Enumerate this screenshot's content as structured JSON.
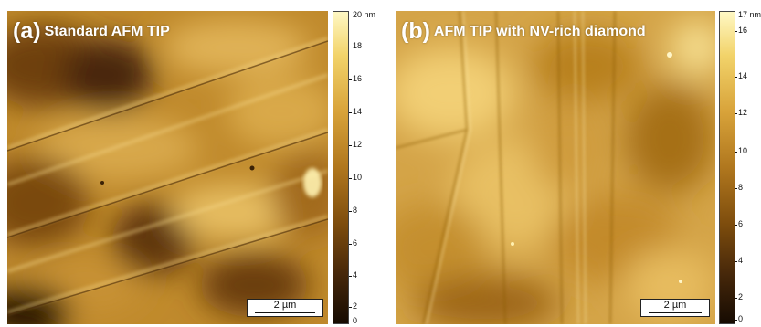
{
  "panels": [
    {
      "letter": "(a)",
      "title": "Standard AFM TIP",
      "scale_bar": "2 µm",
      "colorbar": {
        "unit_label": "20 nm",
        "ticks": [
          "18",
          "16",
          "14",
          "12",
          "10",
          "8",
          "6",
          "4",
          "2",
          "0"
        ]
      }
    },
    {
      "letter": "(b)",
      "title": "AFM TIP with NV-rich diamond",
      "scale_bar": "2 µm",
      "colorbar": {
        "unit_label": "17 nm",
        "ticks": [
          "16",
          "14",
          "12",
          "10",
          "8",
          "6",
          "4",
          "2",
          "0"
        ]
      }
    }
  ],
  "colors": {
    "colormap_high": "#fff8c4",
    "colormap_mid": "#b0771e",
    "colormap_low": "#160b02"
  }
}
